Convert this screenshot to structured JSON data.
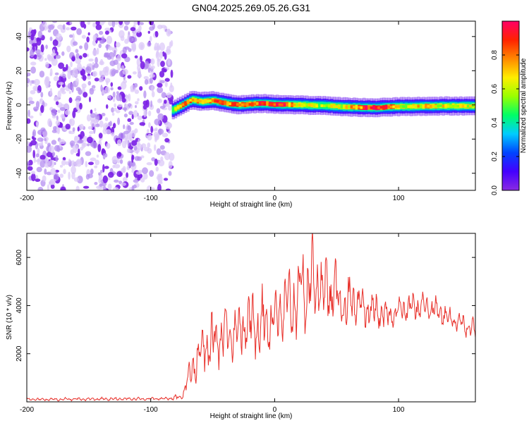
{
  "figure": {
    "title": "GN04.2025.269.05.26.G31"
  },
  "chart_data": [
    {
      "type": "heatmap",
      "title": "GN04.2025.269.05.26.G31",
      "xlabel": "Height of straight line (km)",
      "ylabel": "Frequency (Hz)",
      "xlim": [
        -200,
        162
      ],
      "ylim": [
        -50,
        49
      ],
      "xticks": [
        -200,
        -100,
        0,
        100
      ],
      "yticks": [
        -40,
        -20,
        0,
        20,
        40
      ],
      "noise_region_x": [
        -200,
        -83
      ],
      "signal_start_x": -83,
      "ridge": {
        "x": [
          -83,
          -75,
          -68,
          -60,
          -50,
          -40,
          -30,
          -20,
          -10,
          0,
          20,
          40,
          60,
          80,
          100,
          120,
          140,
          162
        ],
        "freq": [
          -3,
          0,
          3,
          2,
          2.5,
          1,
          0,
          0.5,
          0.8,
          0.3,
          0,
          -0.5,
          -1.3,
          -1.6,
          -1,
          -0.8,
          -0.6,
          -0.7
        ],
        "amplitude": [
          0.6,
          0.9,
          0.8,
          0.8,
          0.85,
          0.9,
          0.85,
          0.9,
          0.9,
          1.0,
          0.7,
          0.65,
          0.75,
          1.0,
          0.7,
          0.75,
          0.7,
          0.7
        ]
      },
      "colorbar": {
        "label": "Normalized spectral amplitude",
        "range": [
          0,
          1
        ],
        "ticks": [
          "0.0",
          "0.2",
          "0.4",
          "0.6",
          "0.8"
        ],
        "tick_values": [
          0,
          0.2,
          0.4,
          0.6,
          0.8
        ],
        "colors": [
          "#8a2be2",
          "#4400ff",
          "#0044ff",
          "#00ccff",
          "#00ff66",
          "#99ff00",
          "#ffee00",
          "#ff8800",
          "#ff2200",
          "#ff0066"
        ]
      }
    },
    {
      "type": "line",
      "xlabel": "Height of straight line (km)",
      "ylabel": "SNR (10 * v/v)",
      "xlim": [
        -200,
        162
      ],
      "ylim": [
        0,
        7000
      ],
      "xticks": [
        -200,
        -100,
        0,
        100
      ],
      "yticks": [
        2000,
        4000,
        6000
      ],
      "line_color": "#e8302a",
      "envelope": {
        "x": [
          -200,
          -90,
          -75,
          -70,
          -60,
          -50,
          -40,
          -30,
          -20,
          -10,
          0,
          10,
          20,
          30,
          40,
          50,
          60,
          70,
          80,
          90,
          100,
          110,
          120,
          130,
          140,
          150,
          162
        ],
        "mean": [
          100,
          130,
          200,
          1000,
          2000,
          2500,
          2900,
          3000,
          3200,
          3300,
          3500,
          3900,
          4500,
          5000,
          4700,
          4400,
          4000,
          3900,
          3800,
          3500,
          3800,
          3900,
          4000,
          3800,
          3500,
          3300,
          3000
        ],
        "amp": [
          60,
          60,
          120,
          500,
          900,
          1100,
          1100,
          1100,
          1200,
          1300,
          1300,
          1400,
          1800,
          1700,
          1400,
          1300,
          1100,
          900,
          700,
          600,
          500,
          600,
          500,
          500,
          500,
          400,
          400
        ]
      }
    }
  ]
}
